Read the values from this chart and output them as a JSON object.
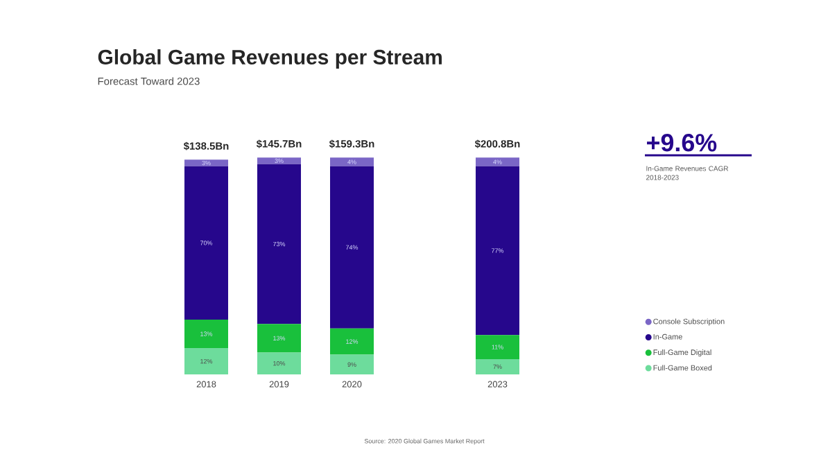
{
  "chart_data": {
    "type": "bar",
    "stacked": true,
    "title": "Global Game Revenues per Stream",
    "subtitle": "Forecast Toward 2023",
    "categories": [
      "2018",
      "2019",
      "2020",
      null,
      "2023"
    ],
    "series": [
      {
        "name": "Full-Game Boxed",
        "color": "#6ddc9c",
        "values": [
          12,
          10,
          9,
          null,
          7
        ],
        "value_labels": [
          "12%",
          "10%",
          "9%",
          null,
          "7%"
        ]
      },
      {
        "name": "Full-Game Digital",
        "color": "#19c03c",
        "values": [
          13,
          13,
          12,
          null,
          11
        ],
        "value_labels": [
          "13%",
          "13%",
          "12%",
          null,
          "11%"
        ]
      },
      {
        "name": "In-Game",
        "color": "#26078c",
        "values": [
          70,
          73,
          74,
          null,
          77
        ],
        "value_labels": [
          "70%",
          "73%",
          "74%",
          null,
          "77%"
        ]
      },
      {
        "name": "Console Subscription",
        "color": "#7a66c6",
        "values": [
          3,
          3,
          4,
          null,
          4
        ],
        "value_labels": [
          "3%",
          "3%",
          "4%",
          null,
          "4%"
        ]
      }
    ],
    "legend": "right",
    "annotations": [
      "+9.6%",
      "In-Game Revenues CAGR 2018-2023",
      "Source: 2020 Global Games Market Report",
      {
        "text": "$138.5Bn",
        "x": "2018",
        "y": 98
      },
      {
        "text": "$145.7Bn",
        "x": "2019",
        "y": 99
      },
      {
        "text": "$159.3Bn",
        "x": "2020",
        "y": 99
      },
      {
        "text": "$200.8Bn",
        "x": "2023",
        "y": 99
      }
    ]
  }
}
